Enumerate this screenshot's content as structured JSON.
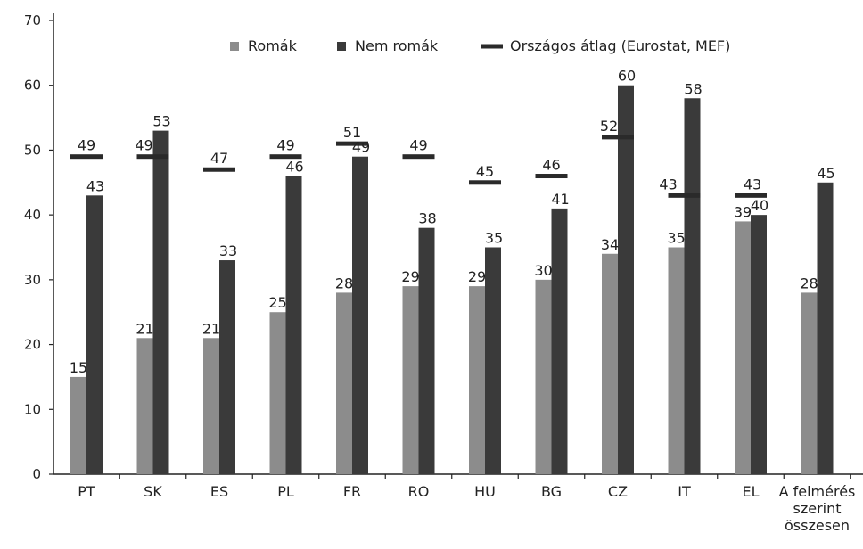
{
  "chart_data": {
    "type": "bar",
    "title": "",
    "xlabel": "",
    "ylabel": "",
    "ylim": [
      0,
      70
    ],
    "yticks": [
      0,
      10,
      20,
      30,
      40,
      50,
      60,
      70
    ],
    "grid": false,
    "legend_position": "top",
    "categories": [
      "PT",
      "SK",
      "ES",
      "PL",
      "FR",
      "RO",
      "HU",
      "BG",
      "CZ",
      "IT",
      "EL",
      "A felmérés szerint összesen"
    ],
    "category_label_lines": [
      [
        "PT"
      ],
      [
        "SK"
      ],
      [
        "ES"
      ],
      [
        "PL"
      ],
      [
        "FR"
      ],
      [
        "RO"
      ],
      [
        "HU"
      ],
      [
        "BG"
      ],
      [
        "CZ"
      ],
      [
        "IT"
      ],
      [
        "EL"
      ],
      [
        "A felmérés",
        "szerint",
        "összesen"
      ]
    ],
    "series": [
      {
        "name": "Romák",
        "kind": "bar",
        "color": "#8c8c8c",
        "values": [
          15,
          21,
          21,
          25,
          28,
          29,
          29,
          30,
          34,
          35,
          39,
          28
        ],
        "labels": [
          "15",
          "21",
          "21",
          "25",
          "28",
          "29",
          "29",
          "30",
          "34",
          "35",
          "39",
          "28"
        ]
      },
      {
        "name": "Nem romák",
        "kind": "bar",
        "color": "#3a3a3a",
        "values": [
          43,
          53,
          33,
          46,
          49,
          38,
          35,
          41,
          60,
          58,
          40,
          45
        ],
        "labels": [
          "43",
          "53",
          "33",
          "46",
          "49",
          "38",
          "35",
          "41",
          "60",
          "58",
          "40",
          "45"
        ]
      },
      {
        "name": "Országos átlag (Eurostat, MEF)",
        "kind": "marker",
        "color": "#2a2a2a",
        "values": [
          49,
          49,
          47,
          49,
          51,
          49,
          45,
          46,
          52,
          43,
          43,
          null
        ],
        "labels": [
          "49",
          "49",
          "47",
          "49",
          "51",
          "49",
          "45",
          "46",
          "52",
          "43",
          "43",
          ""
        ]
      }
    ]
  }
}
